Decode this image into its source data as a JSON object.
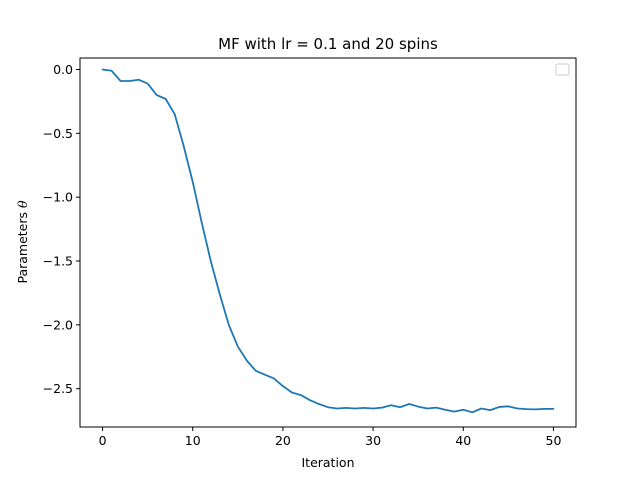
{
  "chart_data": {
    "type": "line",
    "title": "MF with lr = 0.1 and 20 spins",
    "xlabel": "Iteration",
    "ylabel_prefix": "Parameters ",
    "ylabel_symbol": "θ",
    "xlim": [
      -2.5,
      52.5
    ],
    "ylim": [
      -2.8,
      0.09
    ],
    "xticks": [
      0,
      10,
      20,
      30,
      40,
      50
    ],
    "xtick_labels": [
      "0",
      "10",
      "20",
      "30",
      "40",
      "50"
    ],
    "yticks": [
      0.0,
      -0.5,
      -1.0,
      -1.5,
      -2.0,
      -2.5
    ],
    "ytick_labels": [
      "0.0",
      "−0.5",
      "−1.0",
      "−1.5",
      "−2.0",
      "−2.5"
    ],
    "grid": false,
    "legend": "top-right (empty box)",
    "series": [
      {
        "color": "#1f77b4",
        "x": [
          0,
          1,
          2,
          3,
          4,
          5,
          6,
          7,
          8,
          9,
          10,
          11,
          12,
          13,
          14,
          15,
          16,
          17,
          18,
          19,
          20,
          21,
          22,
          23,
          24,
          25,
          26,
          27,
          28,
          29,
          30,
          31,
          32,
          33,
          34,
          35,
          36,
          37,
          38,
          39,
          40,
          41,
          42,
          43,
          44,
          45,
          46,
          47,
          48,
          49,
          50
        ],
        "y": [
          0.0,
          -0.01,
          -0.09,
          -0.09,
          -0.08,
          -0.11,
          -0.2,
          -0.23,
          -0.35,
          -0.6,
          -0.88,
          -1.2,
          -1.5,
          -1.76,
          -2.0,
          -2.17,
          -2.28,
          -2.36,
          -2.39,
          -2.42,
          -2.48,
          -2.53,
          -2.55,
          -2.59,
          -2.62,
          -2.645,
          -2.655,
          -2.65,
          -2.655,
          -2.65,
          -2.655,
          -2.648,
          -2.63,
          -2.645,
          -2.62,
          -2.64,
          -2.655,
          -2.648,
          -2.665,
          -2.68,
          -2.665,
          -2.685,
          -2.655,
          -2.668,
          -2.643,
          -2.638,
          -2.655,
          -2.66,
          -2.662,
          -2.658,
          -2.658
        ]
      }
    ]
  }
}
